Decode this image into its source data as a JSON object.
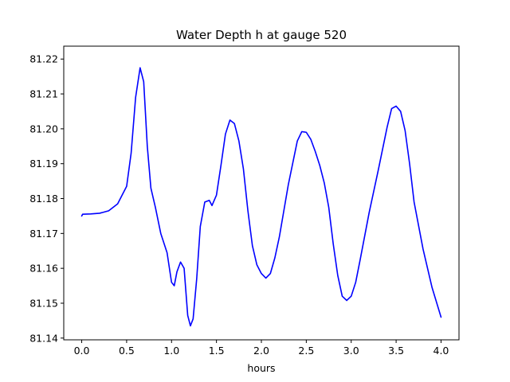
{
  "chart_data": {
    "type": "line",
    "title": "Water Depth h at gauge 520",
    "xlabel": "hours",
    "ylabel": "",
    "xlim": [
      -0.2,
      4.2
    ],
    "ylim": [
      81.1395,
      81.2237
    ],
    "xticks": [
      0.0,
      0.5,
      1.0,
      1.5,
      2.0,
      2.5,
      3.0,
      3.5,
      4.0
    ],
    "xtick_labels": [
      "0.0",
      "0.5",
      "1.0",
      "1.5",
      "2.0",
      "2.5",
      "3.0",
      "3.5",
      "4.0"
    ],
    "yticks": [
      81.14,
      81.15,
      81.16,
      81.17,
      81.18,
      81.19,
      81.2,
      81.21,
      81.22
    ],
    "ytick_labels": [
      "81.14",
      "81.15",
      "81.16",
      "81.17",
      "81.18",
      "81.19",
      "81.20",
      "81.21",
      "81.22"
    ],
    "grid": false,
    "series": [
      {
        "color": "#0000ff",
        "x": [
          0.0,
          0.01,
          0.1,
          0.2,
          0.3,
          0.4,
          0.5,
          0.55,
          0.6,
          0.65,
          0.69,
          0.73,
          0.77,
          0.82,
          0.88,
          0.95,
          1.0,
          1.03,
          1.06,
          1.1,
          1.14,
          1.18,
          1.21,
          1.24,
          1.28,
          1.32,
          1.37,
          1.42,
          1.45,
          1.5,
          1.55,
          1.6,
          1.65,
          1.7,
          1.75,
          1.8,
          1.85,
          1.9,
          1.95,
          2.0,
          2.05,
          2.1,
          2.15,
          2.2,
          2.3,
          2.4,
          2.45,
          2.5,
          2.55,
          2.6,
          2.65,
          2.7,
          2.75,
          2.8,
          2.85,
          2.9,
          2.95,
          3.0,
          3.05,
          3.1,
          3.2,
          3.3,
          3.4,
          3.45,
          3.5,
          3.55,
          3.6,
          3.65,
          3.7,
          3.8,
          3.9,
          4.0
        ],
        "y": [
          81.175,
          81.1755,
          81.1756,
          81.1758,
          81.1765,
          81.1785,
          81.1835,
          81.193,
          81.209,
          81.2175,
          81.2135,
          81.195,
          81.183,
          81.1775,
          81.17,
          81.1645,
          81.156,
          81.155,
          81.159,
          81.1618,
          81.16,
          81.1465,
          81.1435,
          81.1455,
          81.157,
          81.172,
          81.179,
          81.1795,
          81.178,
          81.181,
          81.1895,
          81.1985,
          81.2025,
          81.2015,
          81.1965,
          81.1885,
          81.1765,
          81.1665,
          81.161,
          81.1585,
          81.1572,
          81.1585,
          81.163,
          81.169,
          81.184,
          81.1965,
          81.1992,
          81.199,
          81.197,
          81.1935,
          81.1895,
          81.1845,
          81.1775,
          81.167,
          81.158,
          81.152,
          81.1508,
          81.152,
          81.156,
          81.1625,
          81.176,
          81.188,
          81.2005,
          81.2058,
          81.2065,
          81.205,
          81.1995,
          81.19,
          81.179,
          81.1655,
          81.1545,
          81.146
        ]
      }
    ]
  }
}
